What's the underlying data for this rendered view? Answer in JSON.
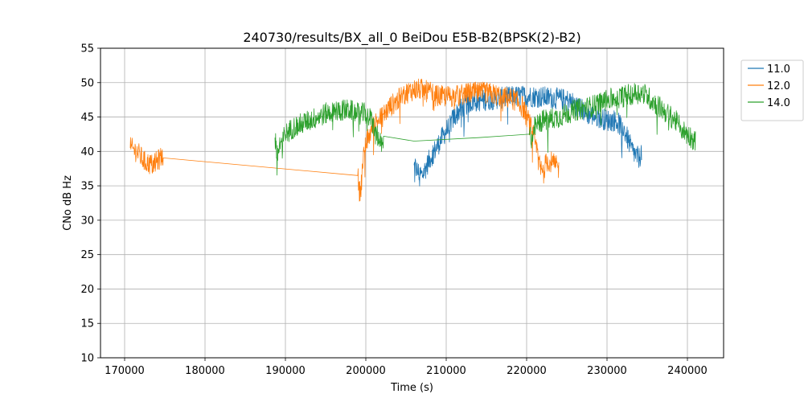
{
  "chart_data": {
    "type": "line",
    "title": "240730/results/BX_all_0 BeiDou E5B-B2(BPSK(2)-B2)",
    "xlabel": "Time (s)",
    "ylabel": "CNo dB Hz",
    "xlim": [
      167000,
      244500
    ],
    "ylim": [
      10,
      55
    ],
    "xticks": [
      170000,
      180000,
      190000,
      200000,
      210000,
      220000,
      230000,
      240000
    ],
    "yticks": [
      10,
      15,
      20,
      25,
      30,
      35,
      40,
      45,
      50,
      55
    ],
    "grid": true,
    "legend_position": "outside-top-right",
    "noise_amplitude_db": 1.6,
    "series": [
      {
        "name": "11.0",
        "color": "#1f77b4",
        "segments": [
          [
            [
              206000,
              38
            ],
            [
              206500,
              37
            ],
            [
              207000,
              36.5
            ],
            [
              208000,
              39
            ],
            [
              209000,
              41
            ],
            [
              210000,
              43
            ],
            [
              211000,
              45
            ],
            [
              212000,
              46.5
            ],
            [
              213000,
              47.2
            ],
            [
              215000,
              47.5
            ],
            [
              217000,
              47.8
            ],
            [
              219000,
              48
            ],
            [
              221000,
              48
            ],
            [
              223000,
              47.8
            ],
            [
              225000,
              47.5
            ],
            [
              226500,
              46.5
            ],
            [
              227500,
              45.5
            ],
            [
              229000,
              45
            ],
            [
              230000,
              44.5
            ],
            [
              231000,
              44.5
            ],
            [
              232000,
              43.5
            ],
            [
              232500,
              42
            ],
            [
              233000,
              40.5
            ],
            [
              233500,
              39.5
            ],
            [
              234000,
              39
            ],
            [
              234300,
              40
            ]
          ]
        ]
      },
      {
        "name": "12.0",
        "color": "#ff7f0e",
        "segments": [
          [
            [
              170700,
              40.5
            ],
            [
              171500,
              40
            ],
            [
              172500,
              38.5
            ],
            [
              173500,
              38
            ],
            [
              174000,
              38.5
            ],
            [
              174800,
              39.5
            ],
            [
              199000,
              36.5
            ],
            [
              199200,
              34
            ],
            [
              199400,
              35
            ],
            [
              199700,
              39
            ],
            [
              200000,
              41
            ],
            [
              200500,
              42.5
            ],
            [
              201000,
              44
            ],
            [
              202000,
              45
            ],
            [
              203000,
              46.5
            ],
            [
              204000,
              47.5
            ],
            [
              205000,
              48.5
            ],
            [
              206000,
              49
            ],
            [
              207000,
              49
            ],
            [
              208000,
              48.5
            ],
            [
              209000,
              48
            ],
            [
              211000,
              48
            ],
            [
              213000,
              48.5
            ],
            [
              215000,
              48.5
            ],
            [
              217000,
              48
            ],
            [
              218500,
              47.5
            ],
            [
              219500,
              46.5
            ],
            [
              220200,
              44.5
            ],
            [
              220800,
              42.5
            ],
            [
              221300,
              40
            ],
            [
              221700,
              37.5
            ],
            [
              222000,
              37
            ],
            [
              222500,
              38.5
            ],
            [
              223000,
              38.5
            ],
            [
              223500,
              38
            ],
            [
              224000,
              37.5
            ]
          ]
        ]
      },
      {
        "name": "14.0",
        "color": "#2ca02c",
        "segments": [
          [
            [
              188700,
              42
            ],
            [
              189000,
              39.5
            ],
            [
              189300,
              41
            ],
            [
              190000,
              42.5
            ],
            [
              191000,
              43.5
            ],
            [
              192000,
              44
            ],
            [
              193000,
              44.5
            ],
            [
              194000,
              45
            ],
            [
              195000,
              45.5
            ],
            [
              196000,
              45.8
            ],
            [
              197000,
              46
            ],
            [
              198000,
              46
            ],
            [
              199000,
              45.5
            ],
            [
              200000,
              45.5
            ],
            [
              200700,
              44.5
            ],
            [
              201200,
              43
            ],
            [
              201700,
              41.5
            ],
            [
              202000,
              40.5
            ],
            [
              202200,
              41
            ],
            [
              206000,
              41.5
            ],
            [
              214000,
              42
            ],
            [
              220300,
              42.5
            ],
            [
              220600,
              42
            ],
            [
              221000,
              43.5
            ],
            [
              222000,
              44.5
            ],
            [
              224000,
              45
            ],
            [
              226000,
              46
            ],
            [
              228000,
              46.5
            ],
            [
              230000,
              47.5
            ],
            [
              232000,
              48
            ],
            [
              233500,
              48.5
            ],
            [
              234500,
              48.5
            ],
            [
              235500,
              47.5
            ],
            [
              236500,
              46.5
            ],
            [
              237500,
              45.5
            ],
            [
              238500,
              44.5
            ],
            [
              239500,
              43
            ],
            [
              240500,
              42
            ],
            [
              241000,
              41.5
            ]
          ]
        ]
      }
    ]
  }
}
